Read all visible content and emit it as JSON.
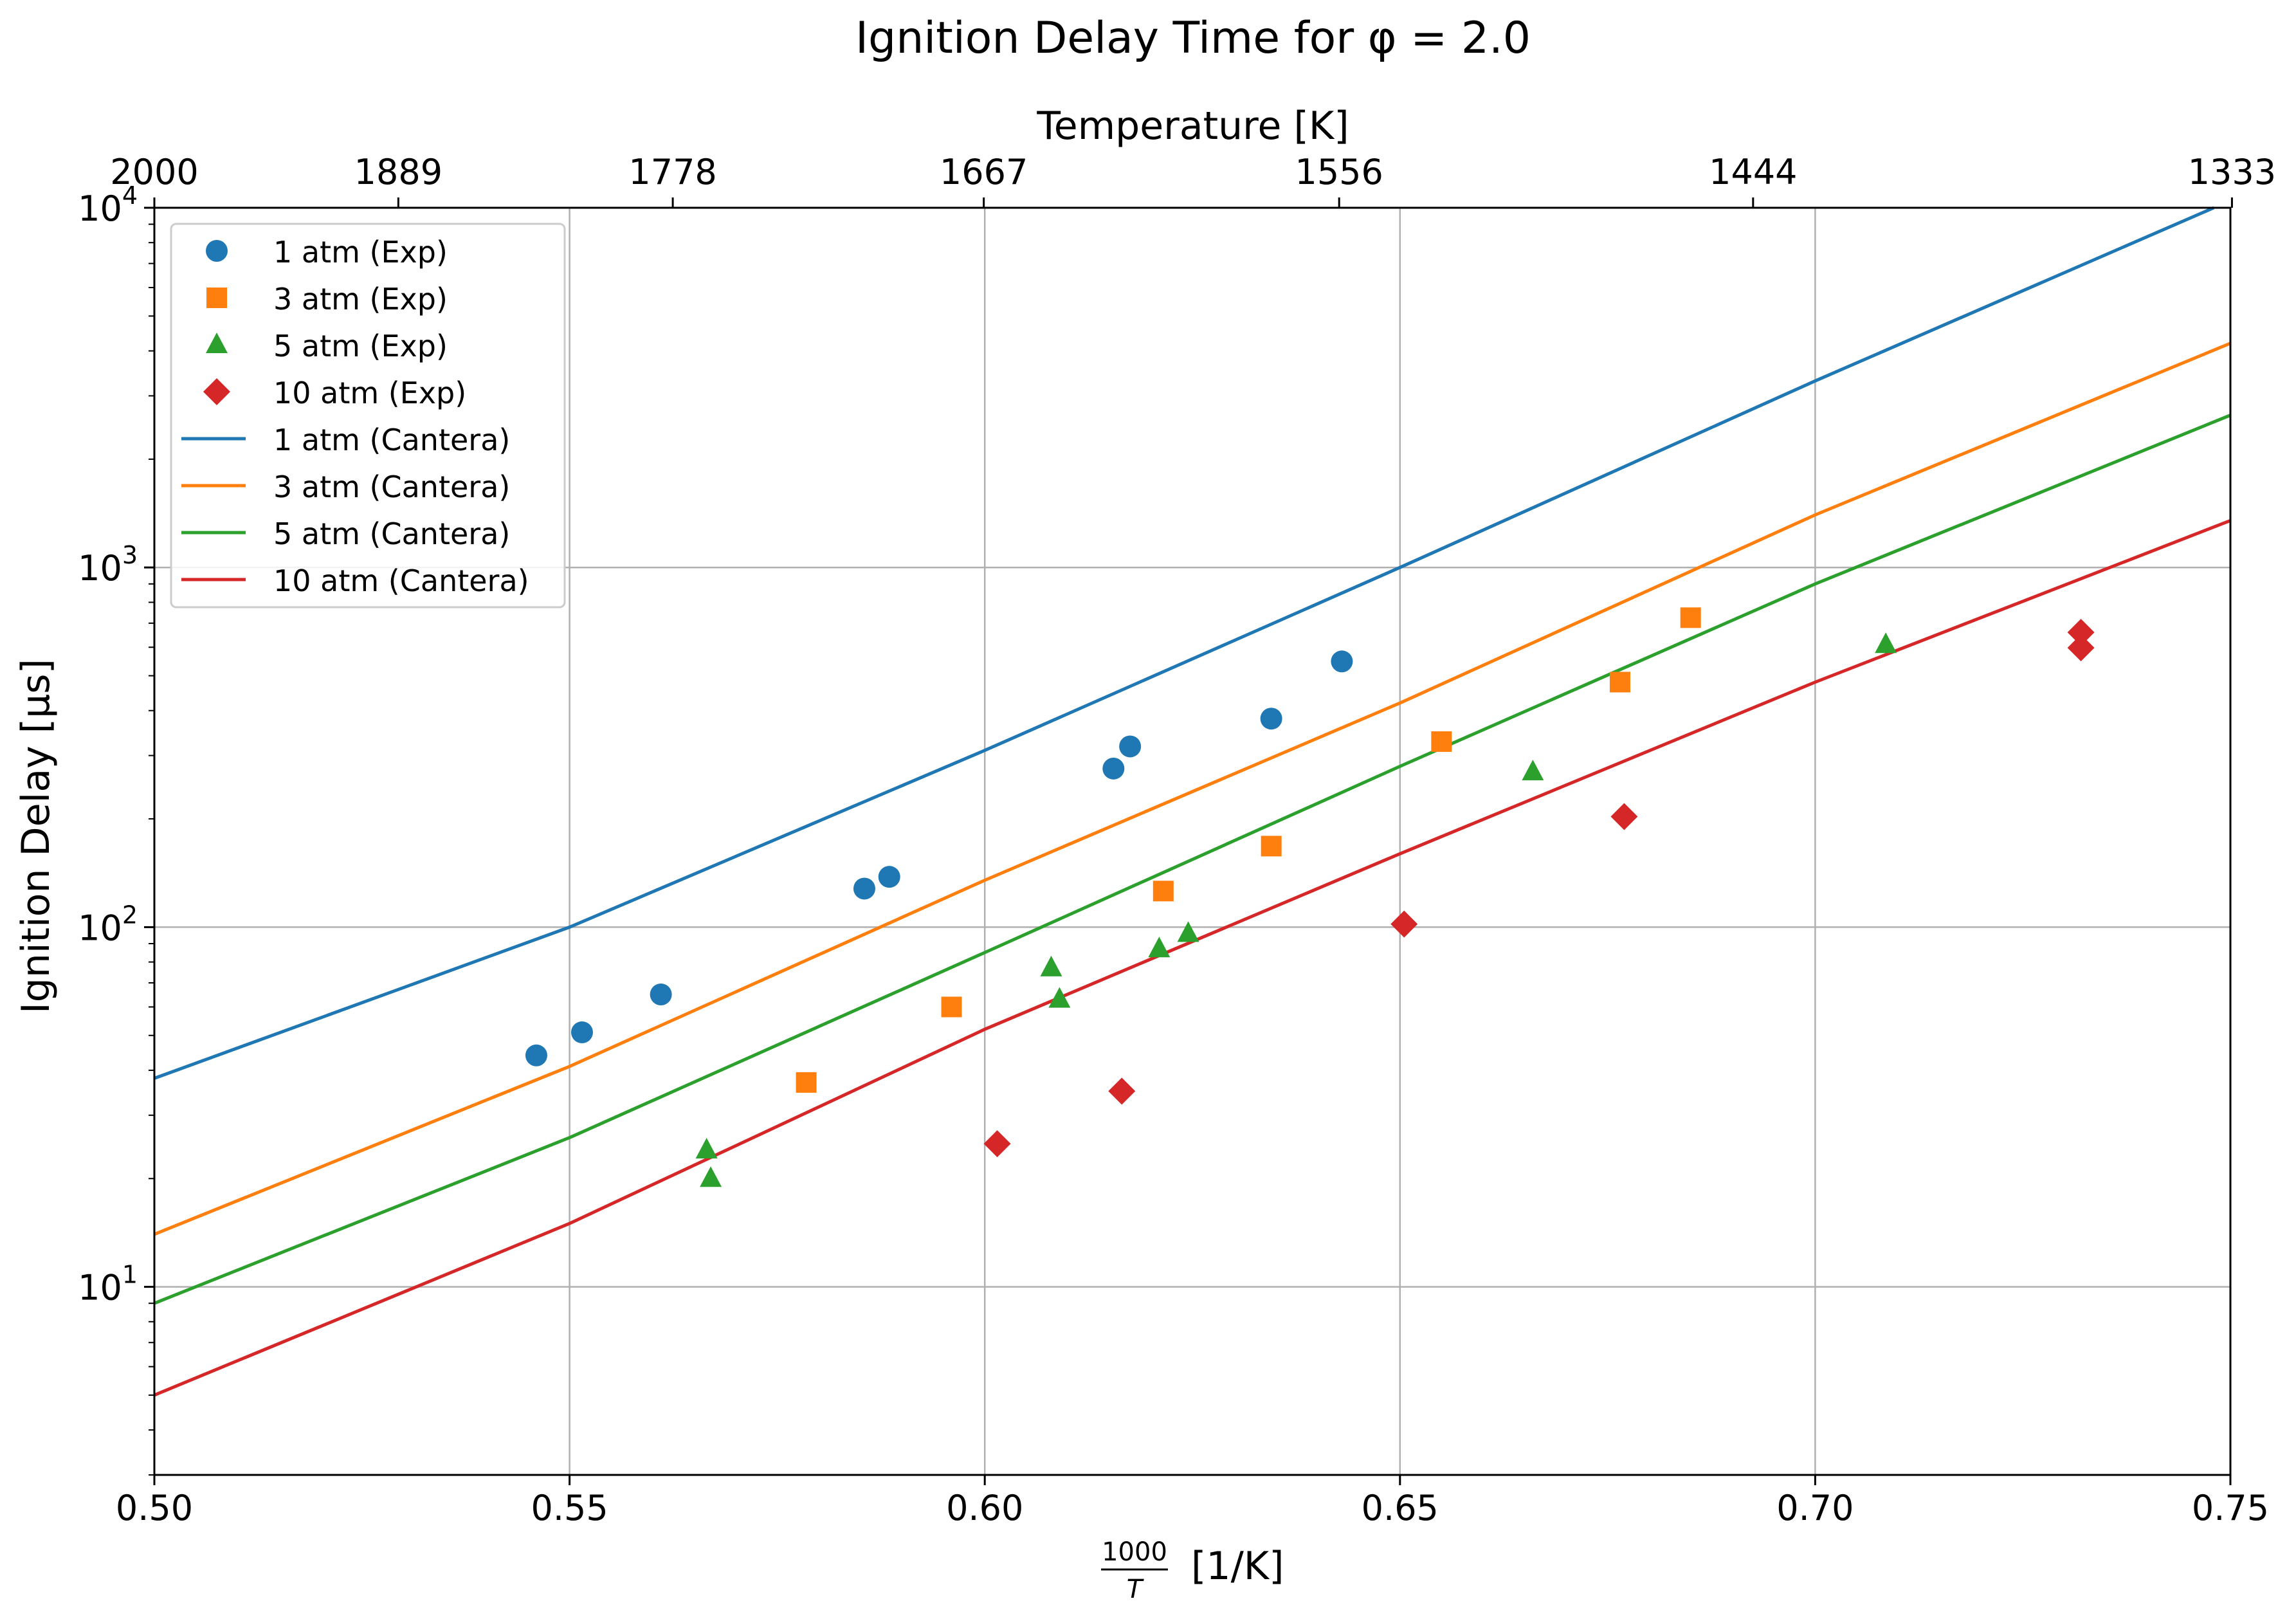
{
  "chart_data": {
    "type": "scatter",
    "title": "Ignition Delay Time for φ = 2.0",
    "xlabel_prefix_num": "1000",
    "xlabel_prefix_den": "T",
    "xlabel_unit": "[1/K]",
    "ylabel": "Ignition Delay [μs]",
    "top_xlabel": "Temperature [K]",
    "xlim": [
      0.5,
      0.75
    ],
    "ylim": [
      3,
      10000
    ],
    "yscale": "log",
    "grid": true,
    "legend_position": "top-left",
    "x_ticks": [
      "0.50",
      "0.55",
      "0.60",
      "0.65",
      "0.70",
      "0.75"
    ],
    "y_ticks": [
      {
        "base": "10",
        "exp": "1"
      },
      {
        "base": "10",
        "exp": "2"
      },
      {
        "base": "10",
        "exp": "3"
      },
      {
        "base": "10",
        "exp": "4"
      }
    ],
    "top_ticks": [
      "2000",
      "1889",
      "1778",
      "1667",
      "1556",
      "1444",
      "1333"
    ],
    "experimental": [
      {
        "name": "1 atm (Exp)",
        "marker": "circle",
        "color": "#1f77b4",
        "points": [
          [
            0.546,
            44
          ],
          [
            0.5515,
            51
          ],
          [
            0.561,
            65
          ],
          [
            0.5855,
            128
          ],
          [
            0.5885,
            138
          ],
          [
            0.6155,
            276
          ],
          [
            0.6175,
            318
          ],
          [
            0.6345,
            380
          ],
          [
            0.643,
            548
          ]
        ]
      },
      {
        "name": "3 atm (Exp)",
        "marker": "square",
        "color": "#ff7f0e",
        "points": [
          [
            0.5785,
            37
          ],
          [
            0.596,
            60
          ],
          [
            0.6215,
            126
          ],
          [
            0.6345,
            168
          ],
          [
            0.655,
            328
          ],
          [
            0.6765,
            480
          ],
          [
            0.685,
            725
          ]
        ]
      },
      {
        "name": "5 atm (Exp)",
        "marker": "triangle",
        "color": "#2ca02c",
        "points": [
          [
            0.5665,
            24
          ],
          [
            0.567,
            20
          ],
          [
            0.608,
            77
          ],
          [
            0.609,
            63
          ],
          [
            0.621,
            87
          ],
          [
            0.6245,
            96
          ],
          [
            0.666,
            270
          ],
          [
            0.7085,
            610
          ]
        ]
      },
      {
        "name": "10 atm (Exp)",
        "marker": "diamond",
        "color": "#d62728",
        "points": [
          [
            0.6015,
            25
          ],
          [
            0.6165,
            35
          ],
          [
            0.6505,
            102
          ],
          [
            0.677,
            203
          ],
          [
            0.732,
            660
          ],
          [
            0.732,
            598
          ]
        ]
      }
    ],
    "model": [
      {
        "name": "1 atm (Cantera)",
        "color": "#1f77b4",
        "points": [
          [
            0.5,
            38
          ],
          [
            0.55,
            100
          ],
          [
            0.6,
            310
          ],
          [
            0.65,
            1000
          ],
          [
            0.7,
            3300
          ],
          [
            0.748,
            10000
          ]
        ]
      },
      {
        "name": "3 atm (Cantera)",
        "color": "#ff7f0e",
        "points": [
          [
            0.5,
            14
          ],
          [
            0.55,
            41
          ],
          [
            0.6,
            135
          ],
          [
            0.65,
            420
          ],
          [
            0.7,
            1400
          ],
          [
            0.75,
            4200
          ]
        ]
      },
      {
        "name": "5 atm (Cantera)",
        "color": "#2ca02c",
        "points": [
          [
            0.5,
            9
          ],
          [
            0.55,
            26
          ],
          [
            0.6,
            85
          ],
          [
            0.65,
            280
          ],
          [
            0.7,
            900
          ],
          [
            0.75,
            2650
          ]
        ]
      },
      {
        "name": "10 atm (Cantera)",
        "color": "#d62728",
        "points": [
          [
            0.5,
            5
          ],
          [
            0.55,
            15
          ],
          [
            0.6,
            52
          ],
          [
            0.65,
            160
          ],
          [
            0.7,
            480
          ],
          [
            0.75,
            1350
          ]
        ]
      }
    ]
  }
}
